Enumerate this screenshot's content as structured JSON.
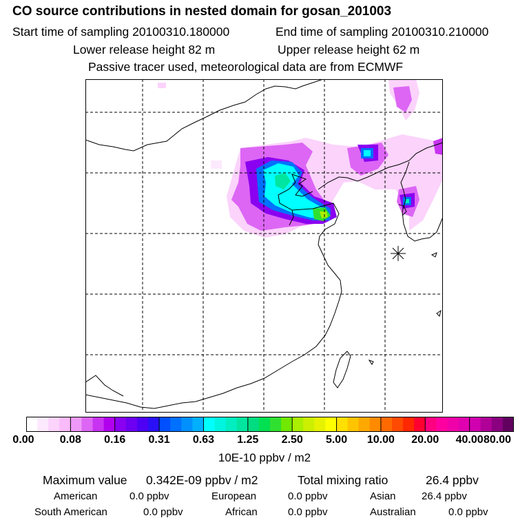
{
  "header": {
    "title": "CO  source contributions in nested domain for gosan_201003",
    "start_time": "Start time of sampling 20100310.180000",
    "end_time": "End time of sampling 20100310.210000",
    "lower_height": "Lower release height   82 m",
    "upper_height": "Upper release height   62 m",
    "note": "Passive tracer used, meteorological data are from ECMWF"
  },
  "colorbar": {
    "ticks": [
      "0.00",
      "0.08",
      "0.16",
      "0.31",
      "0.63",
      "1.25",
      "2.50",
      "5.00",
      "10.00",
      "20.00",
      "40.00",
      "80.00"
    ],
    "colors": [
      "#ffffff",
      "#fde9fd",
      "#fbd3fb",
      "#f9bbf9",
      "#ee99f8",
      "#dd66f5",
      "#c833f2",
      "#b000ee",
      "#8a00f0",
      "#6d00f2",
      "#4d00f4",
      "#2a10f6",
      "#0050ff",
      "#0070ff",
      "#0090ff",
      "#00b0ff",
      "#00ffff",
      "#00f5e0",
      "#00eec0",
      "#00e6a0",
      "#00dd80",
      "#00e050",
      "#30e030",
      "#70e800",
      "#aaee00",
      "#ccf000",
      "#e6f200",
      "#ffff00",
      "#ffe000",
      "#ffc400",
      "#ffa800",
      "#ff8a00",
      "#ff6a00",
      "#ff4a00",
      "#ff2800",
      "#ff0030",
      "#ff0080",
      "#ff00a0",
      "#f000a8",
      "#e000b0",
      "#d000b0",
      "#b00098",
      "#8a0080",
      "#620060"
    ],
    "unit": "10E-10 ppbv / m2"
  },
  "stats": {
    "max_label": "Maximum value",
    "max_value": "0.342E-09 ppbv / m2",
    "total_label": "Total mixing ratio",
    "total_value": "26.4 ppbv",
    "american_label": "American",
    "american_value": "0.0 ppbv",
    "european_label": "European",
    "european_value": "0.0 ppbv",
    "asian_label": "Asian",
    "asian_value": "26.4 ppbv",
    "south_american_label": "South American",
    "south_american_value": "0.0 ppbv",
    "african_label": "African",
    "african_value": "0.0 ppbv",
    "australian_label": "Australian",
    "australian_value": "0.0 ppbv"
  }
}
